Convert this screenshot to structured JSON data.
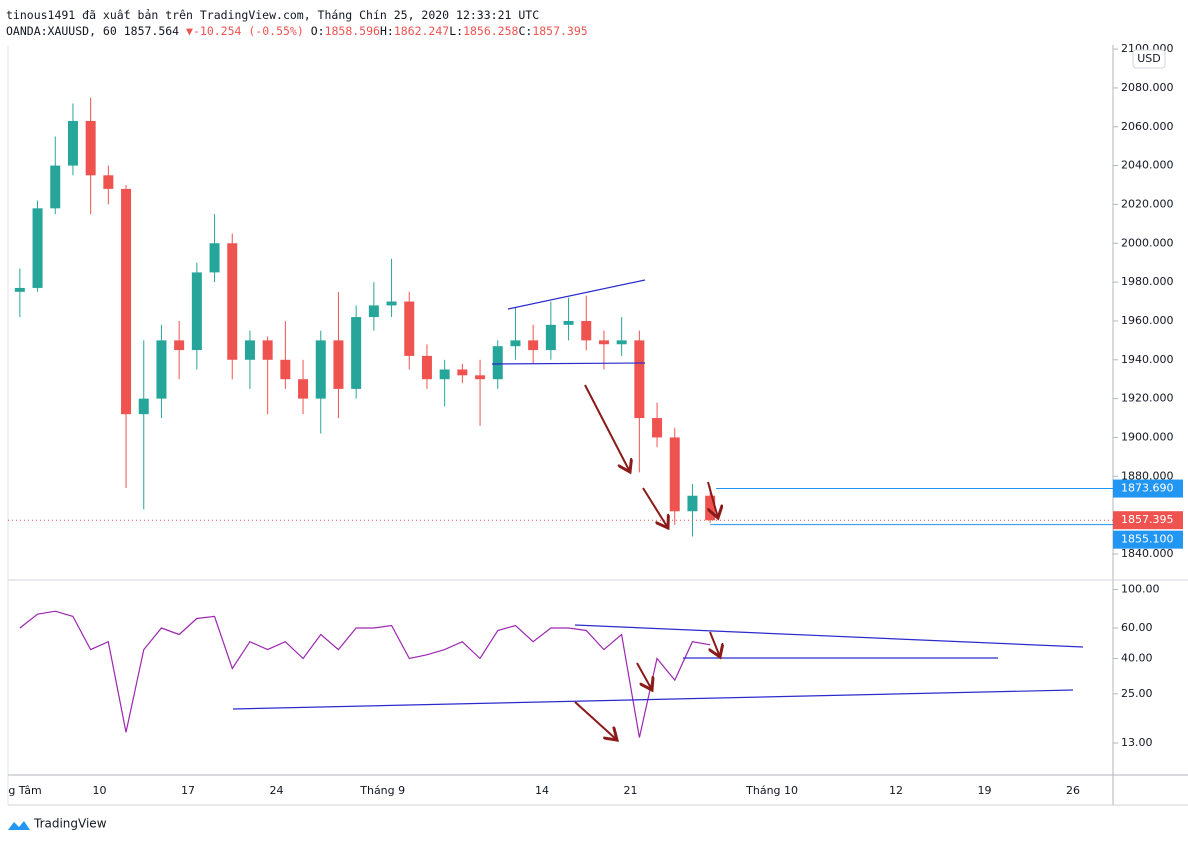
{
  "header": {
    "byline": "tinous1491 đã xuất bản trên TradingView.com, Tháng Chín 25, 2020 12:33:21 UTC",
    "symbol": "OANDA:XAUUSD, 60",
    "last": "1857.564",
    "arrow": "▼",
    "change": "-10.254 (-0.55%)",
    "ohlc": [
      {
        "key": "O:",
        "value": "1858.596"
      },
      {
        "key": "H:",
        "value": "1862.247"
      },
      {
        "key": "L:",
        "value": "1856.258"
      },
      {
        "key": "C:",
        "value": "1857.395"
      }
    ]
  },
  "currency": "USD",
  "brand": "TradingView",
  "chart_data": [
    {
      "type": "candlestick",
      "up_color": "#26a69a",
      "down_color": "#ef5350",
      "grid": false,
      "categories": [
        "g Tâm",
        null,
        null,
        null,
        null,
        "10",
        null,
        null,
        null,
        null,
        "17",
        null,
        null,
        null,
        null,
        "24",
        null,
        null,
        null,
        null,
        null,
        "Tháng 9",
        null,
        null,
        null,
        null,
        null,
        null,
        null,
        null,
        "14",
        null,
        null,
        null,
        null,
        "21",
        null,
        null,
        null,
        null,
        null,
        null,
        null,
        "Tháng 10",
        null,
        null,
        null,
        null,
        null,
        null,
        "12",
        null,
        null,
        null,
        null,
        "19",
        null,
        null,
        null,
        null,
        "26",
        null,
        null
      ],
      "open": [
        1975,
        1977,
        2018,
        2040,
        2063,
        2035,
        2028,
        1912,
        1920,
        1950,
        1945,
        1985,
        2000,
        1940,
        1950,
        1940,
        1930,
        1920,
        1950,
        1925,
        1962,
        1968,
        1970,
        1942,
        1930,
        1935,
        1932,
        1930,
        1947,
        1950,
        1945,
        1958,
        1960,
        1950,
        1948,
        1950,
        1910,
        1900,
        1862,
        1870,
        null,
        null,
        null,
        null,
        null,
        null,
        null,
        null,
        null,
        null,
        null,
        null,
        null,
        null,
        null,
        null,
        null,
        null,
        null,
        null,
        null,
        null,
        null
      ],
      "high": [
        1987,
        2022,
        2055,
        2072,
        2075,
        2040,
        2030,
        1950,
        1958,
        1960,
        1990,
        2015,
        2005,
        1955,
        1952,
        1960,
        1940,
        1955,
        1975,
        1968,
        1980,
        1992,
        1975,
        1948,
        1940,
        1938,
        1940,
        1950,
        1967,
        1958,
        1970,
        1972,
        1973,
        1955,
        1962,
        1955,
        1918,
        1905,
        1876,
        1875,
        null,
        null,
        null,
        null,
        null,
        null,
        null,
        null,
        null,
        null,
        null,
        null,
        null,
        null,
        null,
        null,
        null,
        null,
        null,
        null,
        null,
        null,
        null
      ],
      "low": [
        1962,
        1975,
        2015,
        2035,
        2015,
        2020,
        1874,
        1863,
        1910,
        1930,
        1935,
        1980,
        1930,
        1925,
        1912,
        1925,
        1912,
        1902,
        1910,
        1920,
        1955,
        1962,
        1935,
        1925,
        1916,
        1928,
        1906,
        1925,
        1940,
        1938,
        1940,
        1950,
        1945,
        1935,
        1942,
        1882,
        1895,
        1855,
        1849,
        1856,
        null,
        null,
        null,
        null,
        null,
        null,
        null,
        null,
        null,
        null,
        null,
        null,
        null,
        null,
        null,
        null,
        null,
        null,
        null,
        null,
        null,
        null,
        null
      ],
      "close": [
        1977,
        2018,
        2040,
        2063,
        2035,
        2028,
        1912,
        1920,
        1950,
        1945,
        1985,
        2000,
        1940,
        1950,
        1940,
        1930,
        1920,
        1950,
        1925,
        1962,
        1968,
        1970,
        1942,
        1930,
        1935,
        1932,
        1930,
        1947,
        1950,
        1945,
        1958,
        1960,
        1950,
        1948,
        1950,
        1910,
        1900,
        1862,
        1870,
        1857.395,
        null,
        null,
        null,
        null,
        null,
        null,
        null,
        null,
        null,
        null,
        null,
        null,
        null,
        null,
        null,
        null,
        null,
        null,
        null,
        null,
        null,
        null,
        null
      ],
      "ylim": [
        1826.6,
        2102.1
      ],
      "yticks": [
        {
          "value": 2100,
          "label": "2100.000"
        },
        {
          "value": 2080,
          "label": "2080.000"
        },
        {
          "value": 2060,
          "label": "2060.000"
        },
        {
          "value": 2040,
          "label": "2040.000"
        },
        {
          "value": 2020,
          "label": "2020.000"
        },
        {
          "value": 2000,
          "label": "2000.000"
        },
        {
          "value": 1980,
          "label": "1980.000"
        },
        {
          "value": 1960,
          "label": "1960.000"
        },
        {
          "value": 1940,
          "label": "1940.000"
        },
        {
          "value": 1920,
          "label": "1920.000"
        },
        {
          "value": 1900,
          "label": "1900.000"
        },
        {
          "value": 1880,
          "label": "1880.000"
        },
        {
          "value": 1840,
          "label": "1840.000"
        }
      ],
      "price_lines": [
        {
          "value": 1873.69,
          "label": "1873.690",
          "color": "#2196f3"
        },
        {
          "value": 1855.1,
          "label": "1855.100",
          "color": "#2196f3"
        }
      ],
      "last_price": {
        "value": 1857.395,
        "label": "1857.395",
        "color": "#ef5350"
      }
    },
    {
      "type": "line",
      "log": true,
      "color": "#9c27b0",
      "grid": false,
      "values": [
        60,
        72,
        75,
        70,
        45,
        50,
        15,
        45,
        60,
        55,
        68,
        70,
        35,
        50,
        45,
        50,
        40,
        55,
        45,
        60,
        60,
        62,
        40,
        42,
        45,
        50,
        40,
        58,
        62,
        50,
        60,
        60,
        58,
        45,
        55,
        14,
        40,
        30,
        50,
        48,
        null,
        null,
        null,
        null,
        null,
        null,
        null,
        null,
        null,
        null,
        null,
        null,
        null,
        null,
        null,
        null,
        null,
        null,
        null,
        null,
        null,
        null,
        null
      ],
      "ylim": [
        8.5,
        112
      ],
      "yticks": [
        {
          "value": 100,
          "label": "100.00"
        },
        {
          "value": 60,
          "label": "60.00"
        },
        {
          "value": 40,
          "label": "40.00"
        },
        {
          "value": 25,
          "label": "25.00"
        },
        {
          "value": 13,
          "label": "13.00"
        }
      ]
    }
  ]
}
